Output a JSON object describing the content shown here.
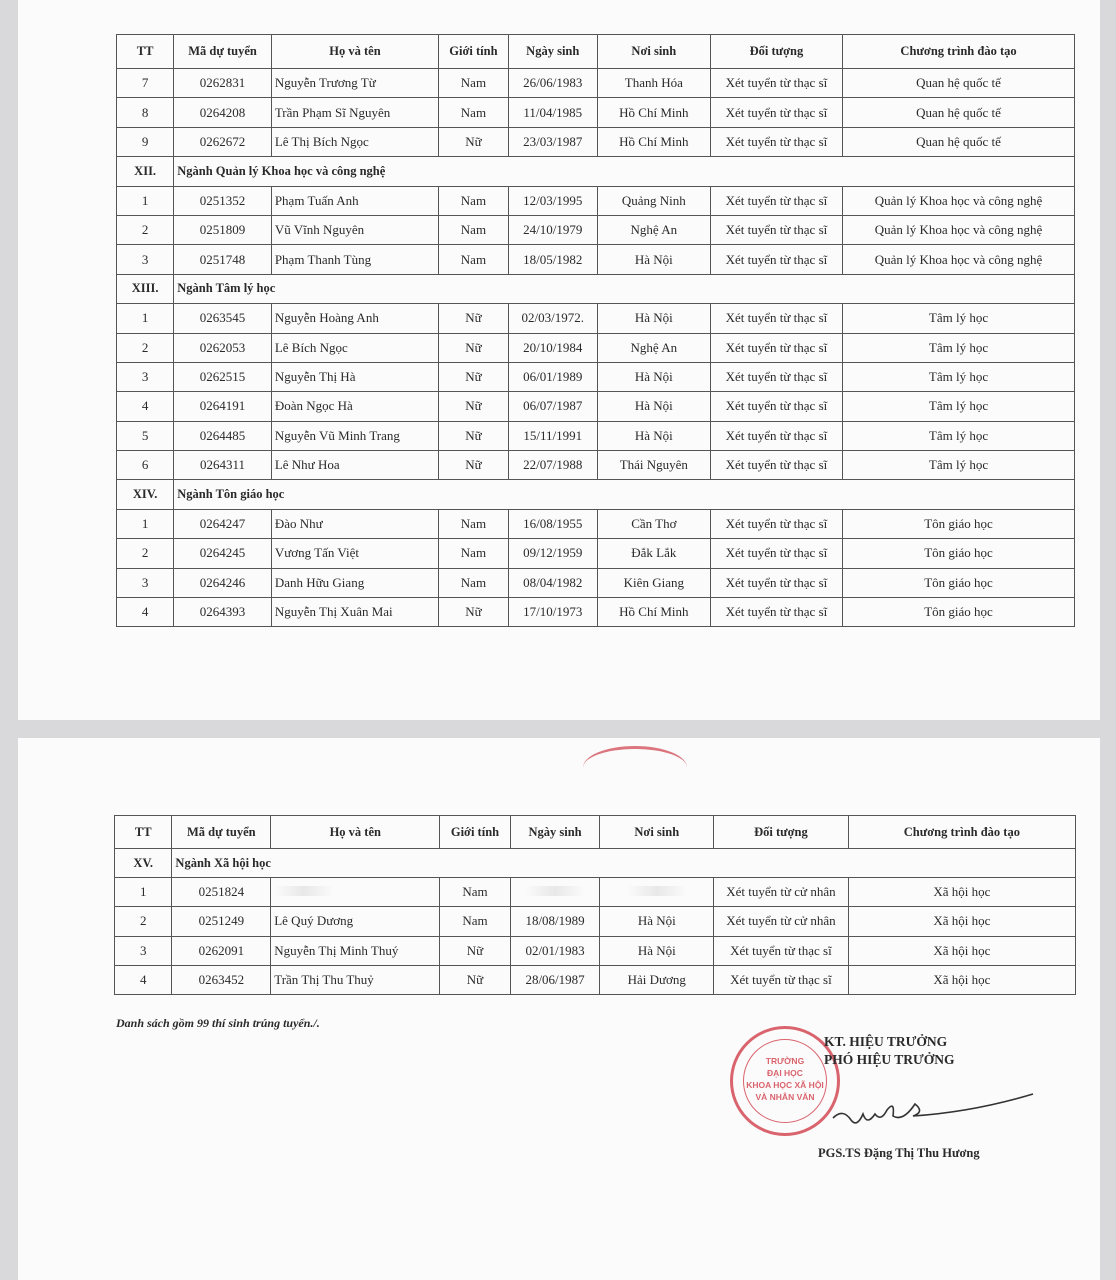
{
  "headers": [
    "TT",
    "Mã dự tuyển",
    "Họ và tên",
    "Giới tính",
    "Ngày sinh",
    "Nơi sinh",
    "Đối tượng",
    "Chương trình đào tạo"
  ],
  "page1": [
    {
      "type": "row",
      "cells": [
        "7",
        "0262831",
        "Nguyễn Trương Từ",
        "Nam",
        "26/06/1983",
        "Thanh Hóa",
        "Xét tuyển từ thạc sĩ",
        "Quan hệ quốc tế"
      ]
    },
    {
      "type": "row",
      "cells": [
        "8",
        "0264208",
        "Trần Phạm Sĩ Nguyên",
        "Nam",
        "11/04/1985",
        "Hồ Chí Minh",
        "Xét tuyển từ thạc sĩ",
        "Quan hệ quốc tế"
      ]
    },
    {
      "type": "row",
      "cells": [
        "9",
        "0262672",
        "Lê Thị Bích Ngọc",
        "Nữ",
        "23/03/1987",
        "Hồ Chí Minh",
        "Xét tuyển từ thạc sĩ",
        "Quan hệ quốc tế"
      ]
    },
    {
      "type": "section",
      "num": "XII.",
      "title": "Ngành Quản lý Khoa học và công nghệ"
    },
    {
      "type": "row",
      "cells": [
        "1",
        "0251352",
        "Phạm Tuấn Anh",
        "Nam",
        "12/03/1995",
        "Quảng Ninh",
        "Xét tuyển từ thạc sĩ",
        "Quản lý Khoa học và công nghệ"
      ]
    },
    {
      "type": "row",
      "cells": [
        "2",
        "0251809",
        "Vũ Vĩnh Nguyên",
        "Nam",
        "24/10/1979",
        "Nghệ An",
        "Xét tuyển từ thạc sĩ",
        "Quản lý Khoa học và công nghệ"
      ]
    },
    {
      "type": "row",
      "cells": [
        "3",
        "0251748",
        "Phạm Thanh Tùng",
        "Nam",
        "18/05/1982",
        "Hà Nội",
        "Xét tuyển từ thạc sĩ",
        "Quản lý Khoa học và công nghệ"
      ]
    },
    {
      "type": "section",
      "num": "XIII.",
      "title": "Ngành Tâm lý học"
    },
    {
      "type": "row",
      "cells": [
        "1",
        "0263545",
        "Nguyễn Hoàng Anh",
        "Nữ",
        "02/03/1972.",
        "Hà Nội",
        "Xét tuyển từ thạc sĩ",
        "Tâm lý học"
      ]
    },
    {
      "type": "row",
      "cells": [
        "2",
        "0262053",
        "Lê Bích Ngọc",
        "Nữ",
        "20/10/1984",
        "Nghệ An",
        "Xét tuyển từ thạc sĩ",
        "Tâm lý học"
      ]
    },
    {
      "type": "row",
      "cells": [
        "3",
        "0262515",
        "Nguyễn Thị Hà",
        "Nữ",
        "06/01/1989",
        "Hà Nội",
        "Xét tuyển từ thạc sĩ",
        "Tâm lý học"
      ]
    },
    {
      "type": "row",
      "cells": [
        "4",
        "0264191",
        "Đoàn Ngọc Hà",
        "Nữ",
        "06/07/1987",
        "Hà Nội",
        "Xét tuyển từ thạc sĩ",
        "Tâm lý học"
      ]
    },
    {
      "type": "row",
      "cells": [
        "5",
        "0264485",
        "Nguyễn Vũ Minh Trang",
        "Nữ",
        "15/11/1991",
        "Hà Nội",
        "Xét tuyển từ thạc sĩ",
        "Tâm lý học"
      ]
    },
    {
      "type": "row",
      "cells": [
        "6",
        "0264311",
        "Lê Như Hoa",
        "Nữ",
        "22/07/1988",
        "Thái Nguyên",
        "Xét tuyển từ thạc sĩ",
        "Tâm lý học"
      ]
    },
    {
      "type": "section",
      "num": "XIV.",
      "title": "Ngành Tôn giáo học"
    },
    {
      "type": "row",
      "cells": [
        "1",
        "0264247",
        "Đào Như",
        "Nam",
        "16/08/1955",
        "Cần Thơ",
        "Xét tuyển từ thạc sĩ",
        "Tôn giáo học"
      ]
    },
    {
      "type": "row",
      "cells": [
        "2",
        "0264245",
        "Vương Tấn Việt",
        "Nam",
        "09/12/1959",
        "Đắk Lắk",
        "Xét tuyển từ thạc sĩ",
        "Tôn giáo học"
      ]
    },
    {
      "type": "row",
      "cells": [
        "3",
        "0264246",
        "Danh Hữu Giang",
        "Nam",
        "08/04/1982",
        "Kiên Giang",
        "Xét tuyển từ thạc sĩ",
        "Tôn giáo học"
      ]
    },
    {
      "type": "row",
      "cells": [
        "4",
        "0264393",
        "Nguyễn Thị Xuân Mai",
        "Nữ",
        "17/10/1973",
        "Hồ Chí Minh",
        "Xét tuyển từ thạc sĩ",
        "Tôn giáo học"
      ]
    }
  ],
  "page2": [
    {
      "type": "section",
      "num": "XV.",
      "title": "Ngành Xã hội học"
    },
    {
      "type": "row",
      "cells": [
        "1",
        "0251824",
        "",
        "Nam",
        "",
        "",
        "Xét tuyển từ cử nhân",
        "Xã hội học"
      ],
      "redacted": [
        2,
        4,
        5
      ]
    },
    {
      "type": "row",
      "cells": [
        "2",
        "0251249",
        "Lê Quý Dương",
        "Nam",
        "18/08/1989",
        "Hà Nội",
        "Xét tuyển từ cử nhân",
        "Xã hội học"
      ]
    },
    {
      "type": "row",
      "cells": [
        "3",
        "0262091",
        "Nguyễn Thị Minh Thuý",
        "Nữ",
        "02/01/1983",
        "Hà Nội",
        "Xét tuyển từ thạc sĩ",
        "Xã hội học"
      ]
    },
    {
      "type": "row",
      "cells": [
        "4",
        "0263452",
        "Trần Thị Thu Thuỷ",
        "Nữ",
        "28/06/1987",
        "Hải Dương",
        "Xét tuyển từ thạc sĩ",
        "Xã hội học"
      ]
    }
  ],
  "footer": {
    "note": "Danh sách gồm 99 thí sinh trúng tuyển./.",
    "signer_line1": "KT. HIỆU TRƯỞNG",
    "signer_line2": "PHÓ HIỆU TRƯỞNG",
    "signer_name": "PGS.TS Đặng Thị Thu Hương",
    "stamp_text": "TRƯỜNG ĐẠI HỌC KHOA HỌC XÃ HỘI VÀ NHÂN VĂN",
    "stamp_color": "#d44a55"
  }
}
